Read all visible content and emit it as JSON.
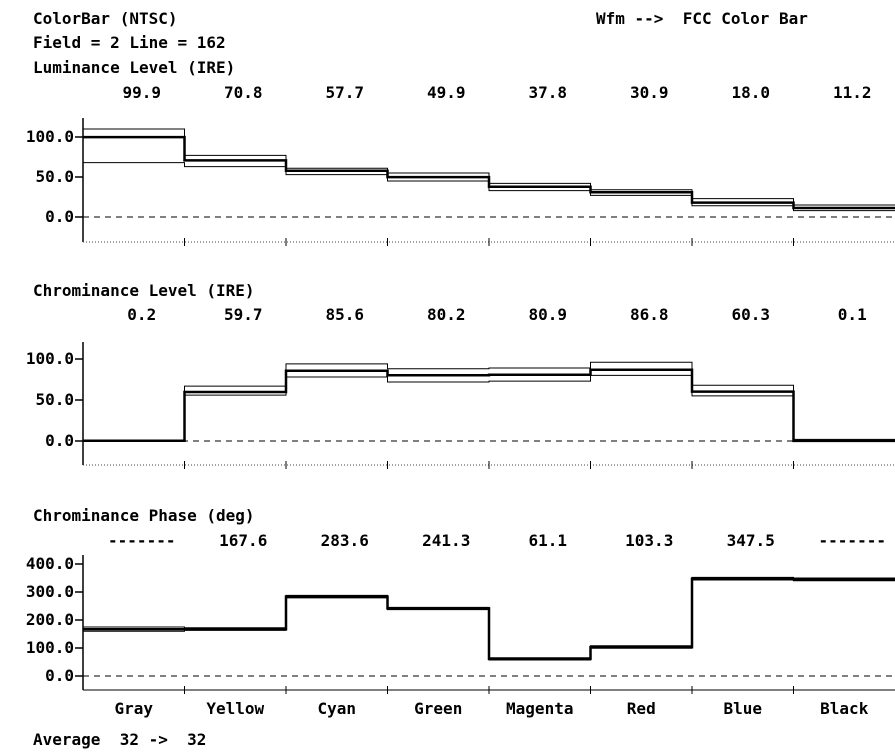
{
  "header": {
    "title": "ColorBar (NTSC)",
    "field_line": "Field = 2 Line = 162",
    "right": "Wfm -->  FCC Color Bar"
  },
  "footer": {
    "average": "Average  32 ->  32"
  },
  "chart_data": [
    {
      "type": "bar",
      "title": "Luminance Level (IRE)",
      "categories": [
        "Gray",
        "Yellow",
        "Cyan",
        "Green",
        "Magenta",
        "Red",
        "Blue",
        "Black"
      ],
      "values": [
        99.9,
        70.8,
        57.7,
        49.9,
        37.8,
        30.9,
        18.0,
        11.2
      ],
      "value_labels": [
        "99.9",
        "70.8",
        "57.7",
        "49.9",
        "37.8",
        "30.9",
        "18.0",
        "11.2"
      ],
      "upper": [
        110,
        77,
        61,
        55,
        42,
        34,
        23,
        15
      ],
      "lower": [
        68,
        63,
        53,
        45,
        33,
        27,
        14,
        8
      ],
      "yticks": [
        "100.0",
        "50.0",
        "0.0"
      ],
      "ylim": [
        -30,
        120
      ]
    },
    {
      "type": "bar",
      "title": "Chrominance Level (IRE)",
      "categories": [
        "Gray",
        "Yellow",
        "Cyan",
        "Green",
        "Magenta",
        "Red",
        "Blue",
        "Black"
      ],
      "values": [
        0.2,
        59.7,
        85.6,
        80.2,
        80.9,
        86.8,
        60.3,
        0.1
      ],
      "value_labels": [
        "0.2",
        "59.7",
        "85.6",
        "80.2",
        "80.9",
        "86.8",
        "60.3",
        "0.1"
      ],
      "upper": [
        1,
        67,
        94,
        88,
        89,
        96,
        68,
        2
      ],
      "lower": [
        0,
        56,
        78,
        72,
        73,
        80,
        55,
        0
      ],
      "yticks": [
        "100.0",
        "50.0",
        "0.0"
      ],
      "ylim": [
        -30,
        125
      ]
    },
    {
      "type": "bar",
      "title": "Chrominance Phase (deg)",
      "categories": [
        "Gray",
        "Yellow",
        "Cyan",
        "Green",
        "Magenta",
        "Red",
        "Blue",
        "Black"
      ],
      "values": [
        167,
        167.6,
        283.6,
        241.3,
        61.1,
        103.3,
        347.5,
        345
      ],
      "value_labels": [
        "-------",
        "167.6",
        "283.6",
        "241.3",
        "61.1",
        "103.3",
        "347.5",
        "-------"
      ],
      "upper": [
        175,
        172,
        288,
        245,
        65,
        108,
        352,
        350
      ],
      "lower": [
        160,
        163,
        279,
        237,
        57,
        99,
        343,
        340
      ],
      "yticks": [
        "400.0",
        "300.0",
        "200.0",
        "100.0",
        "0.0"
      ],
      "ylim": [
        -40,
        410
      ]
    }
  ]
}
